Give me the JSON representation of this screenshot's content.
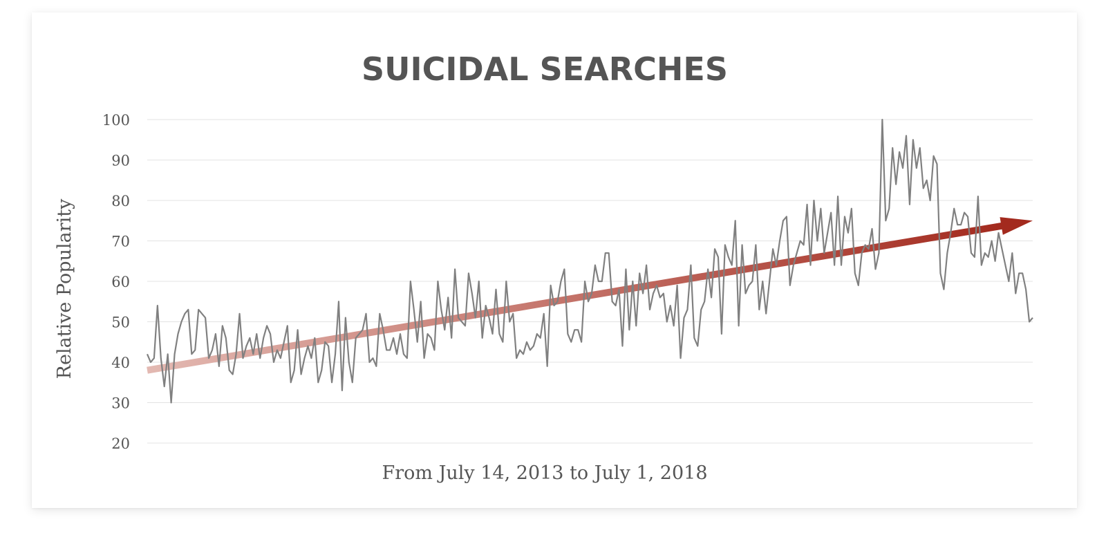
{
  "chart_data": {
    "type": "line",
    "title": "SUICIDAL SEARCHES",
    "xlabel": "From July 14, 2013 to July 1, 2018",
    "ylabel": "Relative Popularity",
    "ylim": [
      20,
      100
    ],
    "yticks": [
      100,
      90,
      80,
      70,
      60,
      50,
      40,
      30,
      20
    ],
    "grid": true,
    "colors": {
      "series": "#808080",
      "trend_start": "#e3b9b2",
      "trend_end": "#a32a1e",
      "text": "#555555"
    },
    "trend": {
      "start": 38,
      "end": 75
    },
    "series": [
      {
        "values": [
          42,
          40,
          41,
          54,
          41,
          34,
          42,
          30,
          42,
          47,
          50,
          52,
          53,
          42,
          43,
          53,
          52,
          51,
          41,
          43,
          47,
          39,
          49,
          46,
          38,
          37,
          42,
          52,
          41,
          44,
          46,
          42,
          47,
          41,
          46,
          49,
          47,
          40,
          43,
          41,
          45,
          49,
          35,
          38,
          48,
          37,
          41,
          44,
          41,
          46,
          35,
          38,
          45,
          44,
          35,
          42,
          55,
          33,
          51,
          40,
          35,
          46,
          47,
          48,
          52,
          40,
          41,
          39,
          52,
          48,
          43,
          43,
          46,
          42,
          47,
          42,
          41,
          60,
          53,
          45,
          55,
          41,
          47,
          46,
          43,
          60,
          53,
          48,
          56,
          46,
          63,
          51,
          50,
          49,
          62,
          57,
          51,
          60,
          46,
          54,
          51,
          47,
          58,
          47,
          45,
          60,
          50,
          52,
          41,
          43,
          42,
          45,
          43,
          44,
          47,
          46,
          52,
          39,
          59,
          54,
          55,
          60,
          63,
          47,
          45,
          48,
          48,
          45,
          60,
          55,
          57,
          64,
          60,
          60,
          67,
          67,
          55,
          54,
          58,
          44,
          63,
          48,
          60,
          49,
          62,
          57,
          64,
          53,
          57,
          59,
          56,
          57,
          50,
          54,
          49,
          59,
          41,
          51,
          53,
          64,
          46,
          44,
          53,
          55,
          63,
          56,
          68,
          66,
          47,
          69,
          66,
          64,
          75,
          49,
          69,
          57,
          59,
          60,
          69,
          53,
          60,
          52,
          60,
          68,
          64,
          70,
          75,
          76,
          59,
          64,
          67,
          70,
          69,
          79,
          64,
          80,
          70,
          78,
          67,
          72,
          77,
          64,
          81,
          64,
          76,
          72,
          78,
          62,
          59,
          67,
          69,
          68,
          73,
          63,
          67,
          100,
          75,
          78,
          93,
          84,
          92,
          88,
          96,
          79,
          95,
          88,
          93,
          83,
          85,
          80,
          91,
          89,
          62,
          58,
          67,
          72,
          78,
          74,
          74,
          77,
          76,
          67,
          66,
          81,
          64,
          67,
          66,
          70,
          65,
          72,
          68,
          64,
          60,
          67,
          57,
          62,
          62,
          58,
          50,
          51
        ]
      }
    ]
  }
}
